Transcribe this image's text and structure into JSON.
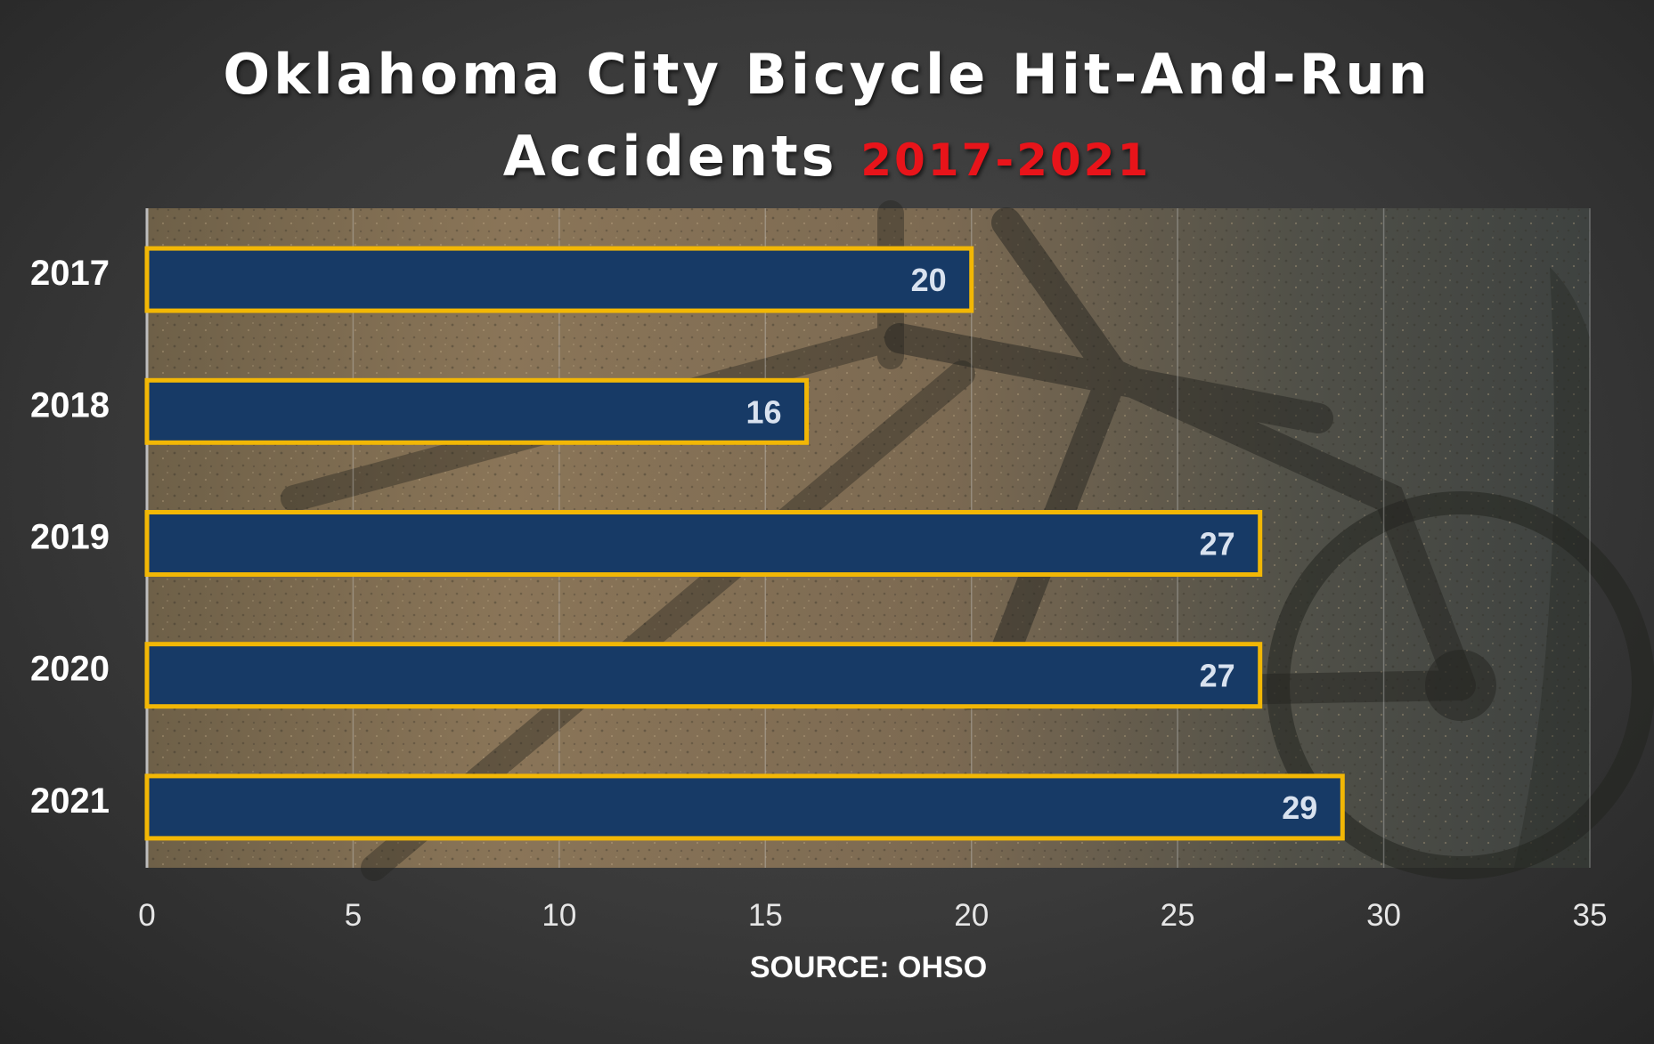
{
  "header": {
    "title_line1": "Oklahoma City Bicycle Hit-And-Run",
    "title_line2": "Accidents",
    "title_accent": "2017-2021"
  },
  "source": "SOURCE: OHSO",
  "colors": {
    "bar_fill": "#173a66",
    "bar_border": "#f2b705",
    "accent": "#e8141a"
  },
  "chart_data": {
    "type": "bar",
    "orientation": "horizontal",
    "categories": [
      "2017",
      "2018",
      "2019",
      "2020",
      "2021"
    ],
    "values": [
      20,
      16,
      27,
      27,
      29
    ],
    "xlim": [
      0,
      35
    ],
    "xticks": [
      0,
      5,
      10,
      15,
      20,
      25,
      30,
      35
    ],
    "grid": true,
    "title": "Oklahoma City Bicycle Hit-And-Run Accidents 2017-2021"
  }
}
